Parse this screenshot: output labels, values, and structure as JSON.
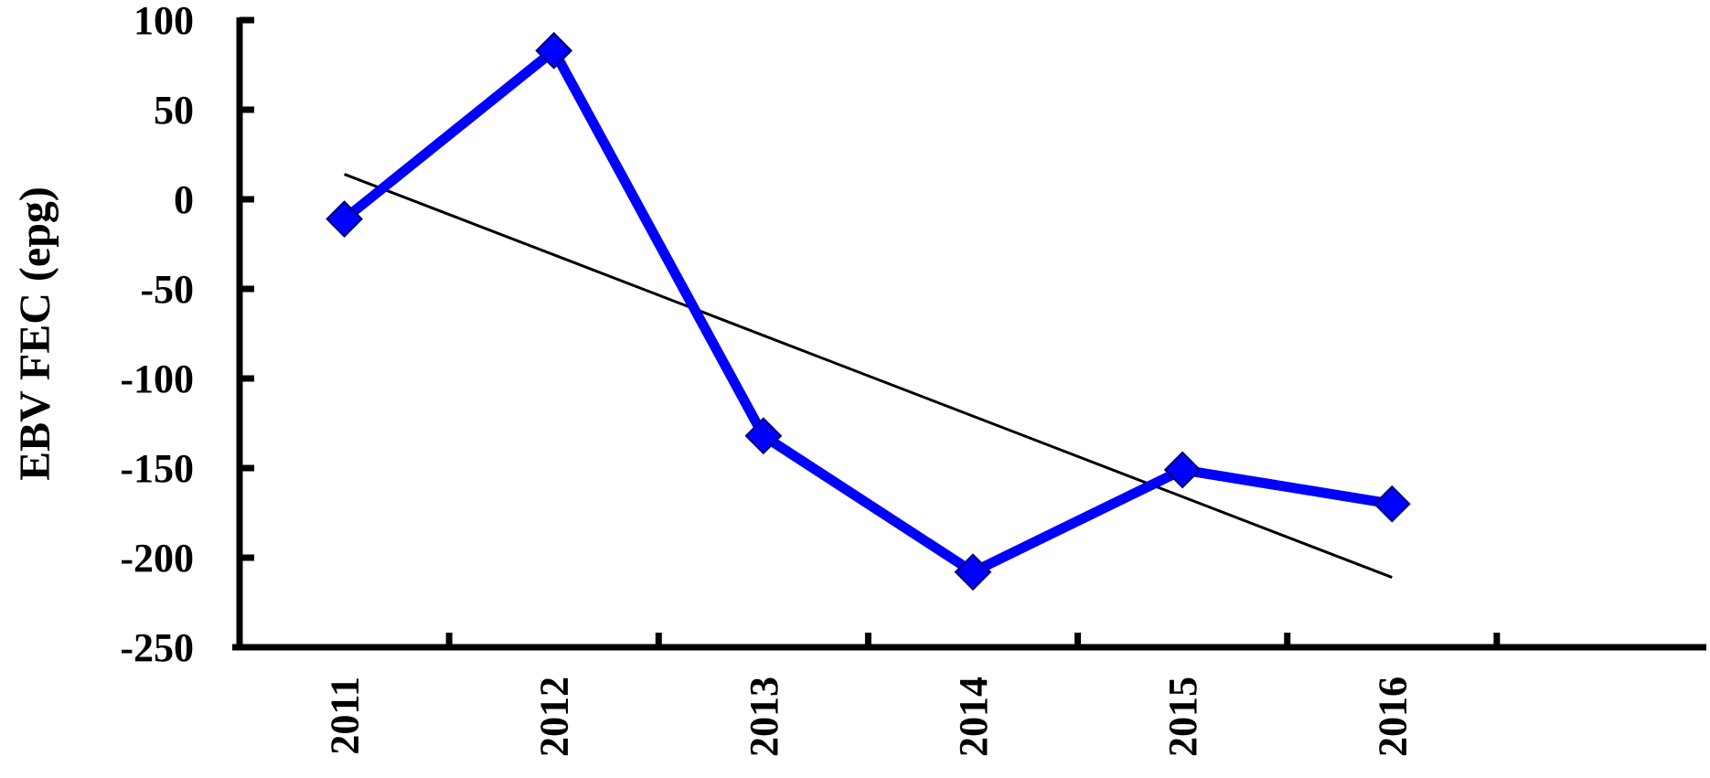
{
  "chart_data": {
    "type": "line",
    "title": "",
    "xlabel": "",
    "ylabel": "EBV FEC (epg)",
    "categories": [
      "2011",
      "2012",
      "2013",
      "2014",
      "2015",
      "2016"
    ],
    "ylim": [
      -250,
      100
    ],
    "yticks": [
      100,
      50,
      0,
      -50,
      -100,
      -150,
      -200,
      -250
    ],
    "series": [
      {
        "values": [
          -11,
          83,
          -132,
          -208,
          -151,
          -170
        ],
        "color": "#0000ff",
        "marker": "diamond"
      }
    ],
    "trendline": {
      "type": "linear",
      "values": [
        14,
        -31,
        -76,
        -121,
        -166,
        -211
      ],
      "color": "#000000"
    },
    "grid": false,
    "legend": "none"
  }
}
